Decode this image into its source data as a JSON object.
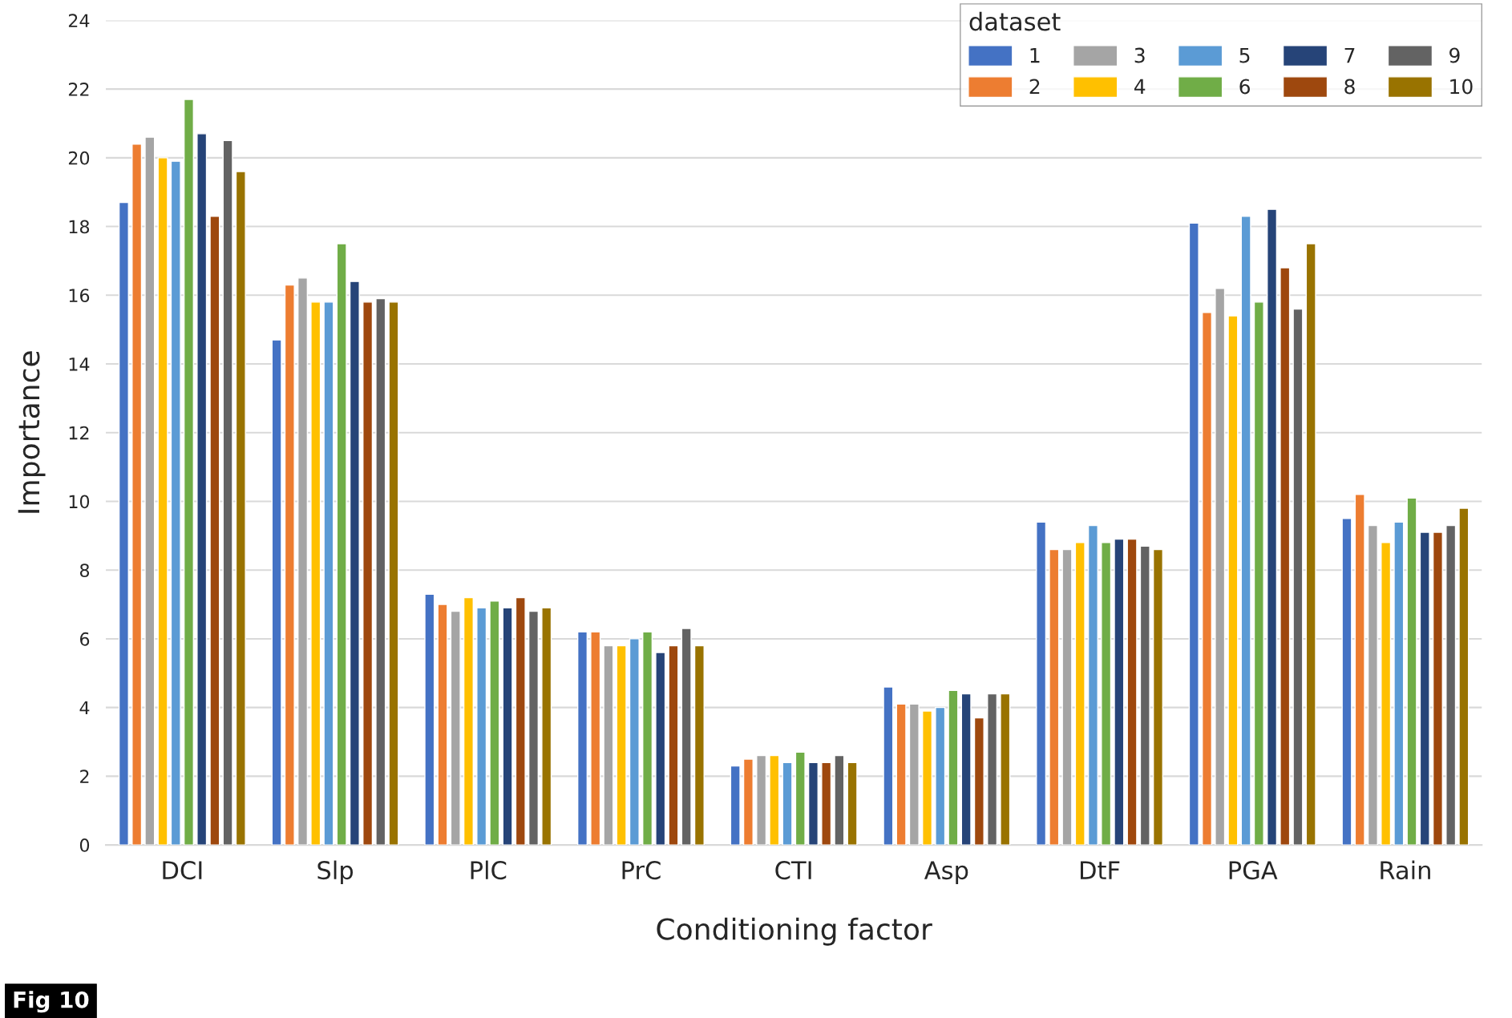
{
  "chart_data": {
    "type": "bar",
    "xlabel": "Conditioning factor",
    "ylabel": "Importance",
    "legend_title": "dataset",
    "categories": [
      "DCI",
      "Slp",
      "PlC",
      "PrC",
      "CTI",
      "Asp",
      "DtF",
      "PGA",
      "Rain"
    ],
    "series": [
      {
        "name": "1",
        "color": "#4472c4",
        "values": [
          18.7,
          14.7,
          7.3,
          6.2,
          2.3,
          4.6,
          9.4,
          18.1,
          9.5
        ]
      },
      {
        "name": "2",
        "color": "#ed7d31",
        "values": [
          20.4,
          16.3,
          7.0,
          6.2,
          2.5,
          4.1,
          8.6,
          15.5,
          10.2
        ]
      },
      {
        "name": "3",
        "color": "#a5a5a5",
        "values": [
          20.6,
          16.5,
          6.8,
          5.8,
          2.6,
          4.1,
          8.6,
          16.2,
          9.3
        ]
      },
      {
        "name": "4",
        "color": "#ffc000",
        "values": [
          20.0,
          15.8,
          7.2,
          5.8,
          2.6,
          3.9,
          8.8,
          15.4,
          8.8
        ]
      },
      {
        "name": "5",
        "color": "#5b9bd5",
        "values": [
          19.9,
          15.8,
          6.9,
          6.0,
          2.4,
          4.0,
          9.3,
          18.3,
          9.4
        ]
      },
      {
        "name": "6",
        "color": "#70ad47",
        "values": [
          21.7,
          17.5,
          7.1,
          6.2,
          2.7,
          4.5,
          8.8,
          15.8,
          10.1
        ]
      },
      {
        "name": "7",
        "color": "#264478",
        "values": [
          20.7,
          16.4,
          6.9,
          5.6,
          2.4,
          4.4,
          8.9,
          18.5,
          9.1
        ]
      },
      {
        "name": "8",
        "color": "#9e480e",
        "values": [
          18.3,
          15.8,
          7.2,
          5.8,
          2.4,
          3.7,
          8.9,
          16.8,
          9.1
        ]
      },
      {
        "name": "9",
        "color": "#636363",
        "values": [
          20.5,
          15.9,
          6.8,
          6.3,
          2.6,
          4.4,
          8.7,
          15.6,
          9.3
        ]
      },
      {
        "name": "10",
        "color": "#997300",
        "values": [
          19.6,
          15.8,
          6.9,
          5.8,
          2.4,
          4.4,
          8.6,
          17.5,
          9.8
        ]
      }
    ],
    "ylim": [
      0,
      24
    ],
    "yticks": [
      0,
      2,
      4,
      6,
      8,
      10,
      12,
      14,
      16,
      18,
      20,
      22,
      24
    ],
    "grid": "y",
    "legend": "top right",
    "annotations": [
      "Fig 10"
    ]
  }
}
